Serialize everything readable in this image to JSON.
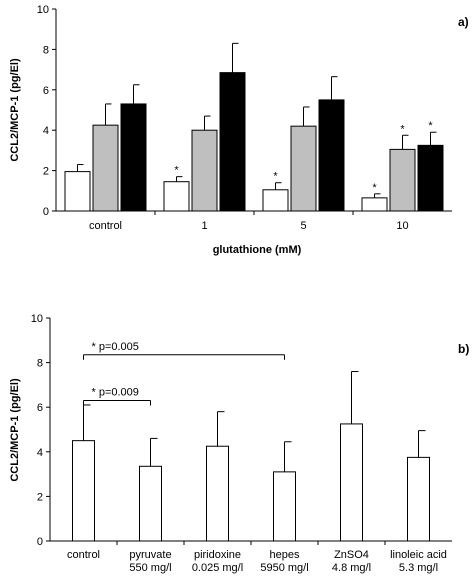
{
  "chart_data": [
    {
      "panel": "a)",
      "type": "bar",
      "ylabel": "CCL2/MCP-1 (pg/El)",
      "xlabel": "glutathione (mM)",
      "ylim": [
        0,
        10
      ],
      "yticks": [
        0,
        2,
        4,
        6,
        8,
        10
      ],
      "categories": [
        "control",
        "1",
        "5",
        "10"
      ],
      "series": [
        {
          "color": "#ffffff",
          "values": [
            1.95,
            1.45,
            1.05,
            0.65
          ],
          "errors": [
            0.35,
            0.25,
            0.35,
            0.2
          ],
          "significant": [
            false,
            true,
            true,
            true
          ]
        },
        {
          "color": "#bfbfbf",
          "values": [
            4.25,
            4.0,
            4.2,
            3.05
          ],
          "errors": [
            1.05,
            0.7,
            0.95,
            0.7
          ],
          "significant": [
            false,
            false,
            false,
            true
          ]
        },
        {
          "color": "#000000",
          "values": [
            5.3,
            6.85,
            5.5,
            3.25
          ],
          "errors": [
            0.95,
            1.45,
            1.15,
            0.65
          ],
          "significant": [
            false,
            false,
            false,
            true
          ]
        }
      ],
      "significance_marker": "*"
    },
    {
      "panel": "b)",
      "type": "bar",
      "ylabel": "CCL2/MCP-1 (pg/El)",
      "ylim": [
        0,
        10
      ],
      "yticks": [
        0,
        2,
        4,
        6,
        8,
        10
      ],
      "categories": [
        {
          "line1": "control",
          "line2": ""
        },
        {
          "line1": "pyruvate",
          "line2": "550 mg/l"
        },
        {
          "line1": "piridoxine",
          "line2": "0.025 mg/l"
        },
        {
          "line1": "hepes",
          "line2": "5950 mg/l"
        },
        {
          "line1": "ZnSO4",
          "line2": "4.8 mg/l"
        },
        {
          "line1": "linoleic acid",
          "line2": "5.3 mg/l"
        }
      ],
      "values": [
        4.5,
        3.35,
        4.25,
        3.1,
        5.25,
        3.75
      ],
      "errors": [
        1.6,
        1.25,
        1.55,
        1.35,
        2.35,
        1.2
      ],
      "color": "#ffffff",
      "comparisons": [
        {
          "from": 0,
          "to": 3,
          "label": "* p=0.005",
          "y": 8.35
        },
        {
          "from": 0,
          "to": 1,
          "label": "* p=0.009",
          "y": 6.3
        }
      ]
    }
  ]
}
